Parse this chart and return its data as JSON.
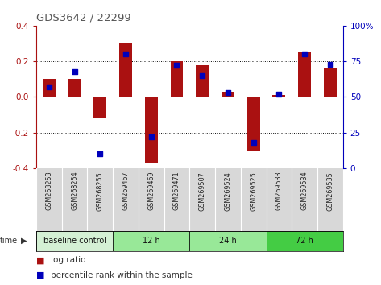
{
  "title": "GDS3642 / 22299",
  "samples": [
    "GSM268253",
    "GSM268254",
    "GSM268255",
    "GSM269467",
    "GSM269469",
    "GSM269471",
    "GSM269507",
    "GSM269524",
    "GSM269525",
    "GSM269533",
    "GSM269534",
    "GSM269535"
  ],
  "log_ratio": [
    0.1,
    0.1,
    -0.12,
    0.3,
    -0.37,
    0.2,
    0.18,
    0.03,
    -0.3,
    0.01,
    0.25,
    0.16
  ],
  "percentile_rank": [
    57,
    68,
    10,
    80,
    22,
    72,
    65,
    53,
    18,
    52,
    80,
    73
  ],
  "bar_color": "#aa1111",
  "dot_color": "#0000bb",
  "ylim_left": [
    -0.4,
    0.4
  ],
  "ylim_right": [
    0,
    100
  ],
  "yticks_left": [
    -0.4,
    -0.2,
    0.0,
    0.2,
    0.4
  ],
  "yticks_right": [
    0,
    25,
    50,
    75,
    100
  ],
  "dotted_lines": [
    -0.2,
    0.0,
    0.2
  ],
  "group_defs": [
    [
      0,
      3,
      "#d4f0d4",
      "baseline control"
    ],
    [
      3,
      6,
      "#98e898",
      "12 h"
    ],
    [
      6,
      9,
      "#98e898",
      "24 h"
    ],
    [
      9,
      12,
      "#44cc44",
      "72 h"
    ]
  ]
}
